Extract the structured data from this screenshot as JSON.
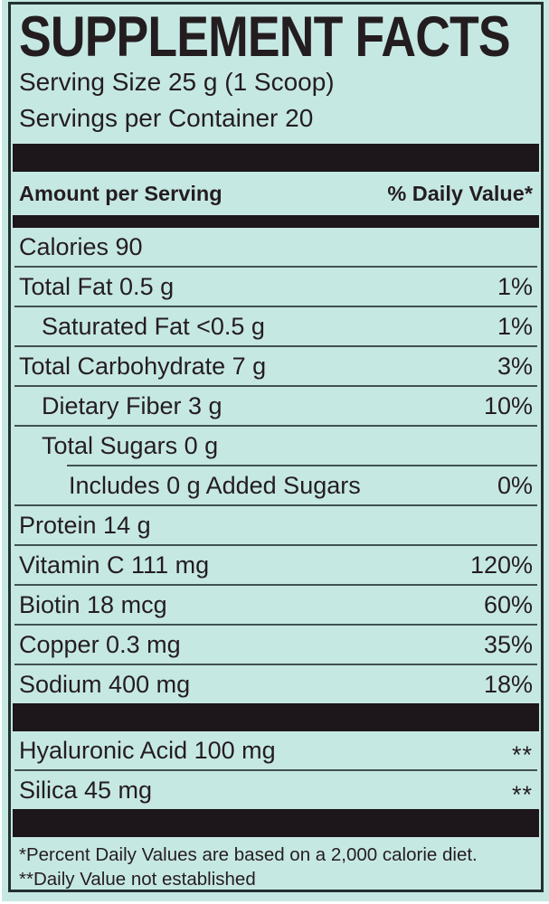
{
  "panel": {
    "title": "SUPPLEMENT FACTS",
    "serving_size": "Serving Size 25 g (1 Scoop)",
    "servings_per_container": "Servings per Container 20",
    "column_headers": {
      "amount": "Amount per Serving",
      "daily_value": "% Daily Value*"
    },
    "rows": [
      {
        "label": "Calories 90",
        "value": "",
        "indent": 0,
        "divider": "full"
      },
      {
        "label": "Total Fat 0.5 g",
        "value": "1%",
        "indent": 0,
        "divider": "full"
      },
      {
        "label": "Saturated Fat <0.5 g",
        "value": "1%",
        "indent": 1,
        "divider": "full"
      },
      {
        "label": "Total Carbohydrate 7 g",
        "value": "3%",
        "indent": 0,
        "divider": "full"
      },
      {
        "label": "Dietary Fiber 3 g",
        "value": "10%",
        "indent": 1,
        "divider": "full"
      },
      {
        "label": "Total Sugars 0 g",
        "value": "",
        "indent": 1,
        "divider": "indent"
      },
      {
        "label": "Includes 0 g Added Sugars",
        "value": "0%",
        "indent": 2,
        "divider": "full"
      },
      {
        "label": "Protein 14 g",
        "value": "",
        "indent": 0,
        "divider": "full"
      },
      {
        "label": "Vitamin C 111 mg",
        "value": "120%",
        "indent": 0,
        "divider": "full"
      },
      {
        "label": "Biotin 18 mcg",
        "value": "60%",
        "indent": 0,
        "divider": "full"
      },
      {
        "label": "Copper 0.3 mg",
        "value": "35%",
        "indent": 0,
        "divider": "full"
      },
      {
        "label": "Sodium 400 mg",
        "value": "18%",
        "indent": 0,
        "divider": "none"
      }
    ],
    "other_rows": [
      {
        "label": "Hyaluronic Acid 100 mg",
        "value": "**",
        "indent": 0,
        "divider": "full"
      },
      {
        "label": "Silica 45 mg",
        "value": "**",
        "indent": 0,
        "divider": "none"
      }
    ],
    "footnotes": [
      "*Percent Daily Values are based on a 2,000 calorie diet.",
      "**Daily Value not established"
    ]
  },
  "colors": {
    "background": "#c6e8e3",
    "ink": "#241d20",
    "bar": "#1d161a",
    "divider": "#41514f",
    "border": "#22312f"
  }
}
